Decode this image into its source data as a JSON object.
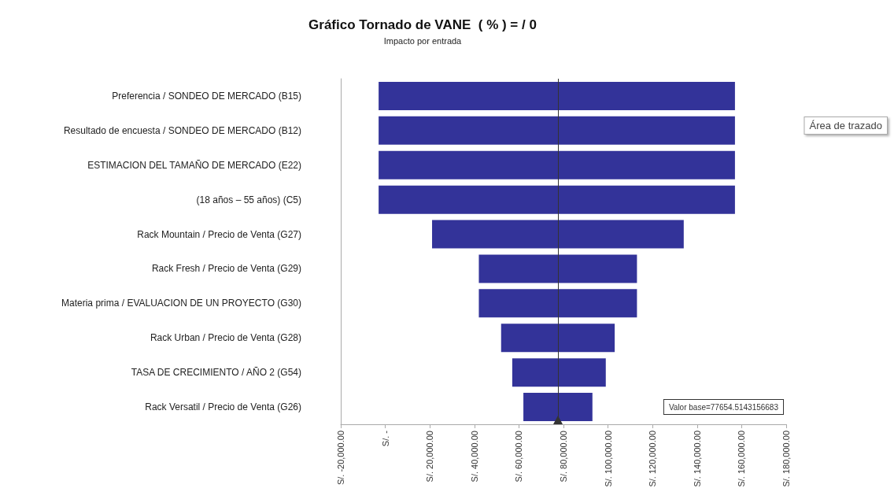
{
  "chart_data": {
    "type": "bar",
    "orientation": "horizontal",
    "title": "Gráfico Tornado de VANE  ( % ) = / 0",
    "subtitle": "Impacto por entrada",
    "categories": [
      "Preferencia / SONDEO DE MERCADO (B15)",
      "Resultado de encuesta / SONDEO DE MERCADO (B12)",
      "ESTIMACION DEL TAMAÑO DE MERCADO (E22)",
      "(18 años – 55 años) (C5)",
      "Rack Mountain / Precio de Venta (G27)",
      "Rack Fresh / Precio de Venta (G29)",
      "Materia prima / EVALUACION DE UN PROYECTO (G30)",
      "Rack Urban / Precio de Venta (G28)",
      "TASA DE CRECIMIENTO / AÑO 2 (G54)",
      "Rack Versatil / Precio de Venta (G26)"
    ],
    "base": [
      -3000,
      -3000,
      -3000,
      -3000,
      21000,
      42000,
      42000,
      52000,
      57000,
      62000
    ],
    "values": [
      160000,
      160000,
      160000,
      160000,
      113000,
      71000,
      71000,
      51000,
      42000,
      31000
    ],
    "color": "#333399",
    "xlim": [
      -20000,
      180000
    ],
    "xticks": [
      {
        "value": -20000,
        "label": "S/. -20,000.00"
      },
      {
        "value": 0,
        "label": "S/. -"
      },
      {
        "value": 20000,
        "label": "S/. 20,000.00"
      },
      {
        "value": 40000,
        "label": "S/. 40,000.00"
      },
      {
        "value": 60000,
        "label": "S/. 60,000.00"
      },
      {
        "value": 80000,
        "label": "S/. 80,000.00"
      },
      {
        "value": 100000,
        "label": "S/. 100,000.00"
      },
      {
        "value": 120000,
        "label": "S/. 120,000.00"
      },
      {
        "value": 140000,
        "label": "S/. 140,000.00"
      },
      {
        "value": 160000,
        "label": "S/. 160,000.00"
      },
      {
        "value": 180000,
        "label": "S/. 180,000.00"
      }
    ],
    "ref_lines": [
      {
        "axis": "x",
        "value": 77654.5143156683,
        "label": "Valor base=77654.5143156683",
        "color": "#333333"
      }
    ],
    "annotations": [
      "Área de trazado"
    ],
    "grid": false
  }
}
